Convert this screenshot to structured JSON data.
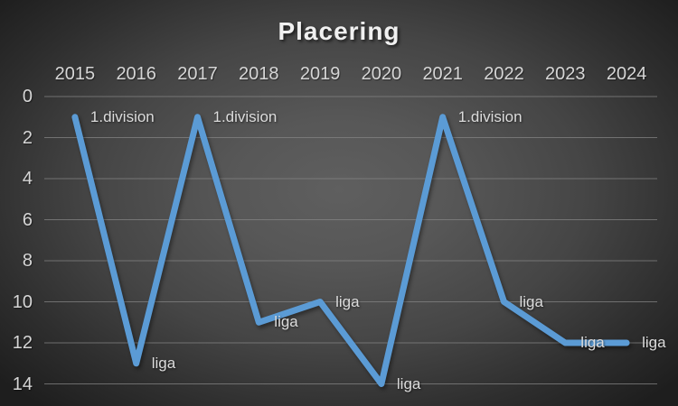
{
  "chart_data": {
    "type": "line",
    "title": "Placering",
    "categories": [
      "2015",
      "2016",
      "2017",
      "2018",
      "2019",
      "2020",
      "2021",
      "2022",
      "2023",
      "2024"
    ],
    "series": [
      {
        "name": "Placering",
        "values": [
          1,
          13,
          1,
          11,
          10,
          14,
          1,
          10,
          12,
          12
        ],
        "point_labels": [
          "1.division",
          "liga",
          "1.division",
          "liga",
          "liga",
          "liga",
          "1.division",
          "liga",
          "liga",
          "liga"
        ],
        "color": "#5B9BD5"
      }
    ],
    "x_axis_position": "top",
    "y_axis": {
      "ticks": [
        0,
        2,
        4,
        6,
        8,
        10,
        12,
        14
      ],
      "range": [
        0,
        14
      ],
      "inverted": true
    },
    "grid": true,
    "legend": "none",
    "colors": {
      "background_center": "#5f5f5f",
      "background_edge": "#1e1e1e",
      "gridline": "#848484",
      "axis_text": "#d6d6d6",
      "data_label_text": "#dcdcdc",
      "title_text": "#f0f0f0"
    }
  }
}
